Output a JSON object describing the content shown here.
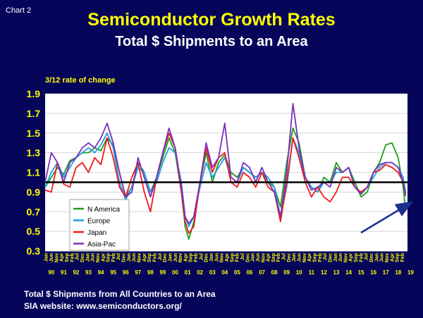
{
  "header": {
    "chart_label": "Chart 2",
    "title": "Semiconductor Growth Rates",
    "subtitle": "Total $ Shipments to an Area"
  },
  "footer": {
    "line1": "Total $ Shipments  from All Countries to an Area",
    "line2": "SIA website:  www.semiconductors.org/"
  },
  "colors": {
    "background": "#05055a",
    "plot_background": "#ffffff",
    "title": "#ffff00",
    "tick_text": "#ffff00",
    "reference_line": "#000000",
    "arrow": "#1f2f8f"
  },
  "chart_data": {
    "type": "line",
    "ylabel": "3/12 rate of change",
    "ylim": [
      0.3,
      1.9
    ],
    "yticks": [
      "1.9",
      "1.7",
      "1.5",
      "1.3",
      "1.1",
      "0.9",
      "0.7",
      "0.5",
      "0.3"
    ],
    "xlim": [
      1990.0,
      2019.25
    ],
    "reference_line": 1.0,
    "month_labels": [
      "Jan",
      "Jun",
      "Nov",
      "Apr",
      "Sep",
      "Feb",
      "Jul",
      "Dec"
    ],
    "years": [
      "90",
      "91",
      "92",
      "93",
      "94",
      "95",
      "96",
      "97",
      "98",
      "99",
      "00",
      "01",
      "02",
      "03",
      "04",
      "05",
      "06",
      "07",
      "08",
      "09",
      "10",
      "11",
      "12",
      "13",
      "14",
      "15",
      "16",
      "17",
      "18",
      "19"
    ],
    "legend": {
      "position": "lower-left"
    },
    "series": [
      {
        "name": "N America",
        "color": "#1aa01a",
        "x": [
          1990.0,
          1990.5,
          1991.0,
          1991.5,
          1992.0,
          1992.5,
          1993.0,
          1993.5,
          1994.0,
          1994.5,
          1995.0,
          1995.5,
          1996.0,
          1996.5,
          1997.0,
          1997.5,
          1998.0,
          1998.5,
          1999.0,
          1999.5,
          2000.0,
          2000.5,
          2001.0,
          2001.3,
          2001.6,
          2002.0,
          2002.5,
          2003.0,
          2003.5,
          2004.0,
          2004.5,
          2005.0,
          2005.5,
          2006.0,
          2006.5,
          2007.0,
          2007.5,
          2008.0,
          2008.5,
          2009.0,
          2009.5,
          2010.0,
          2010.5,
          2011.0,
          2011.5,
          2012.0,
          2012.5,
          2013.0,
          2013.5,
          2014.0,
          2014.5,
          2015.0,
          2015.5,
          2016.0,
          2016.5,
          2017.0,
          2017.5,
          2018.0,
          2018.5,
          2018.9,
          2019.1
        ],
        "values": [
          0.95,
          1.05,
          1.15,
          1.08,
          1.22,
          1.25,
          1.3,
          1.3,
          1.35,
          1.32,
          1.45,
          1.38,
          1.1,
          0.85,
          0.95,
          1.2,
          1.1,
          0.9,
          1.05,
          1.25,
          1.45,
          1.3,
          0.9,
          0.55,
          0.42,
          0.6,
          1.0,
          1.3,
          1.0,
          1.2,
          1.28,
          1.1,
          1.05,
          1.15,
          1.1,
          1.05,
          1.1,
          1.0,
          0.95,
          0.75,
          1.2,
          1.55,
          1.4,
          1.05,
          0.95,
          0.9,
          1.05,
          1.0,
          1.2,
          1.1,
          1.15,
          1.0,
          0.85,
          0.9,
          1.1,
          1.2,
          1.38,
          1.4,
          1.25,
          0.95,
          0.72
        ]
      },
      {
        "name": "Europe",
        "color": "#1e9ee0",
        "x": [
          1990.0,
          1990.5,
          1991.0,
          1991.5,
          1992.0,
          1992.5,
          1993.0,
          1993.5,
          1994.0,
          1994.5,
          1995.0,
          1995.5,
          1996.0,
          1996.5,
          1997.0,
          1997.5,
          1998.0,
          1998.5,
          1999.0,
          1999.5,
          2000.0,
          2000.5,
          2001.0,
          2001.3,
          2001.6,
          2002.0,
          2002.5,
          2003.0,
          2003.5,
          2004.0,
          2004.5,
          2005.0,
          2005.5,
          2006.0,
          2006.5,
          2007.0,
          2007.5,
          2008.0,
          2008.5,
          2009.0,
          2009.5,
          2010.0,
          2010.5,
          2011.0,
          2011.5,
          2012.0,
          2012.5,
          2013.0,
          2013.5,
          2014.0,
          2014.5,
          2015.0,
          2015.5,
          2016.0,
          2016.5,
          2017.0,
          2017.5,
          2018.0,
          2018.5,
          2018.9,
          2019.1
        ],
        "values": [
          0.95,
          1.1,
          1.2,
          1.05,
          1.15,
          1.25,
          1.3,
          1.35,
          1.3,
          1.38,
          1.5,
          1.35,
          1.0,
          0.82,
          0.95,
          1.15,
          1.1,
          0.9,
          1.0,
          1.2,
          1.35,
          1.3,
          1.0,
          0.65,
          0.55,
          0.65,
          0.95,
          1.2,
          1.05,
          1.15,
          1.25,
          1.05,
          1.0,
          1.15,
          1.1,
          1.05,
          1.1,
          1.05,
          0.95,
          0.65,
          0.95,
          1.45,
          1.3,
          1.05,
          0.95,
          0.9,
          1.0,
          1.0,
          1.1,
          1.1,
          1.15,
          0.95,
          0.88,
          0.95,
          1.05,
          1.15,
          1.2,
          1.2,
          1.15,
          1.05,
          0.9
        ]
      },
      {
        "name": "Japan",
        "color": "#ee1a1a",
        "x": [
          1990.0,
          1990.5,
          1991.0,
          1991.5,
          1992.0,
          1992.5,
          1993.0,
          1993.5,
          1994.0,
          1994.5,
          1995.0,
          1995.5,
          1996.0,
          1996.5,
          1997.0,
          1997.5,
          1998.0,
          1998.5,
          1999.0,
          1999.5,
          2000.0,
          2000.5,
          2001.0,
          2001.3,
          2001.6,
          2002.0,
          2002.5,
          2003.0,
          2003.5,
          2004.0,
          2004.5,
          2005.0,
          2005.5,
          2006.0,
          2006.5,
          2007.0,
          2007.5,
          2008.0,
          2008.5,
          2009.0,
          2009.5,
          2010.0,
          2010.5,
          2011.0,
          2011.5,
          2012.0,
          2012.5,
          2013.0,
          2013.5,
          2014.0,
          2014.5,
          2015.0,
          2015.5,
          2016.0,
          2016.5,
          2017.0,
          2017.5,
          2018.0,
          2018.5,
          2018.9,
          2019.1
        ],
        "values": [
          0.92,
          0.9,
          1.2,
          0.98,
          0.95,
          1.15,
          1.2,
          1.1,
          1.25,
          1.18,
          1.45,
          1.25,
          0.95,
          0.85,
          1.05,
          1.2,
          0.9,
          0.7,
          1.05,
          1.3,
          1.5,
          1.35,
          0.9,
          0.6,
          0.48,
          0.55,
          1.0,
          1.35,
          1.1,
          1.25,
          1.3,
          1.0,
          0.95,
          1.1,
          1.05,
          0.95,
          1.1,
          0.95,
          0.9,
          0.6,
          1.0,
          1.45,
          1.25,
          1.0,
          0.85,
          0.95,
          0.85,
          0.8,
          0.9,
          1.05,
          1.05,
          0.95,
          0.9,
          0.95,
          1.1,
          1.12,
          1.18,
          1.15,
          1.1,
          1.0,
          0.88
        ]
      },
      {
        "name": "Asia-Pac",
        "color": "#7a2ec0",
        "x": [
          1990.0,
          1990.5,
          1991.0,
          1991.5,
          1992.0,
          1992.5,
          1993.0,
          1993.5,
          1994.0,
          1994.5,
          1995.0,
          1995.5,
          1996.0,
          1996.5,
          1997.0,
          1997.5,
          1998.0,
          1998.5,
          1999.0,
          1999.5,
          2000.0,
          2000.5,
          2001.0,
          2001.3,
          2001.6,
          2002.0,
          2002.5,
          2003.0,
          2003.5,
          2004.0,
          2004.5,
          2005.0,
          2005.5,
          2006.0,
          2006.5,
          2007.0,
          2007.5,
          2008.0,
          2008.5,
          2009.0,
          2009.5,
          2010.0,
          2010.5,
          2011.0,
          2011.5,
          2012.0,
          2012.5,
          2013.0,
          2013.5,
          2014.0,
          2014.5,
          2015.0,
          2015.5,
          2016.0,
          2016.5,
          2017.0,
          2017.5,
          2018.0,
          2018.5,
          2018.9,
          2019.1
        ],
        "values": [
          1.0,
          1.3,
          1.2,
          1.0,
          1.2,
          1.25,
          1.35,
          1.4,
          1.35,
          1.45,
          1.6,
          1.4,
          1.1,
          0.85,
          0.9,
          1.25,
          1.05,
          0.85,
          1.05,
          1.3,
          1.55,
          1.35,
          0.95,
          0.65,
          0.58,
          0.65,
          1.0,
          1.4,
          1.15,
          1.25,
          1.6,
          1.05,
          1.0,
          1.2,
          1.15,
          1.0,
          1.15,
          1.0,
          0.9,
          0.65,
          1.1,
          1.8,
          1.35,
          1.05,
          0.92,
          0.95,
          1.0,
          0.95,
          1.15,
          1.1,
          1.15,
          0.95,
          0.88,
          0.95,
          1.1,
          1.18,
          1.2,
          1.2,
          1.15,
          1.0,
          0.86
        ]
      }
    ]
  }
}
